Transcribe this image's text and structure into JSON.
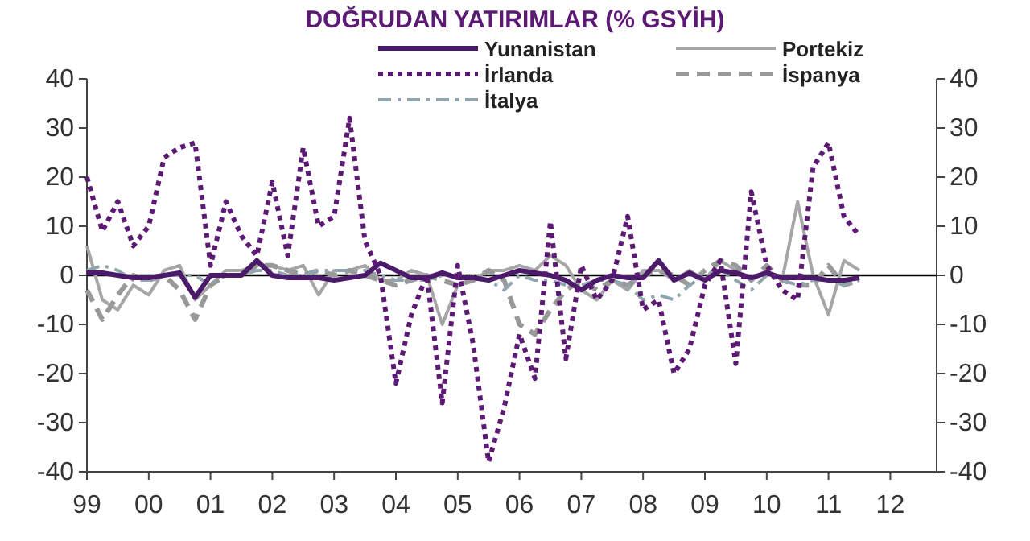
{
  "chart_data": {
    "type": "line",
    "title": "DOĞRUDAN YATIRIMLAR (% GSYİH)",
    "x": [
      1999,
      1999.25,
      1999.5,
      1999.75,
      2000,
      2000.25,
      2000.5,
      2000.75,
      2001,
      2001.25,
      2001.5,
      2001.75,
      2002,
      2002.25,
      2002.5,
      2002.75,
      2003,
      2003.25,
      2003.5,
      2003.75,
      2004,
      2004.25,
      2004.5,
      2004.75,
      2005,
      2005.25,
      2005.5,
      2005.75,
      2006,
      2006.25,
      2006.5,
      2006.75,
      2007,
      2007.25,
      2007.5,
      2007.75,
      2008,
      2008.25,
      2008.5,
      2008.75,
      2009,
      2009.25,
      2009.5,
      2009.75,
      2010,
      2010.25,
      2010.5,
      2010.75,
      2011,
      2011.25,
      2011.5
    ],
    "series": [
      {
        "name": "Yunanistan",
        "color": "#4b1a6b",
        "line_style": "solid",
        "values": [
          0.5,
          0.5,
          0,
          -0.5,
          -0.5,
          0,
          0.5,
          -4.5,
          0,
          0,
          0,
          3,
          0,
          -0.5,
          -0.5,
          -0.5,
          -1,
          -0.5,
          0,
          2.5,
          1,
          -0.5,
          -0.5,
          0.5,
          -0.5,
          -0.5,
          -1,
          0,
          1,
          0.5,
          0,
          -1,
          -3,
          -1,
          0,
          -0.5,
          -0.5,
          3,
          -1,
          0.5,
          -1,
          1,
          0.5,
          -0.5,
          0.5,
          -0.5,
          -0.5,
          -0.5,
          -1,
          -1,
          -0.5
        ]
      },
      {
        "name": "İrlanda",
        "color": "#5c1a75",
        "line_style": "dotted",
        "values": [
          20,
          9,
          15,
          6,
          10,
          24,
          26,
          27,
          2,
          15,
          8,
          4,
          19,
          4,
          26,
          10,
          12,
          32,
          7,
          0,
          -22,
          -8,
          0,
          -26,
          2,
          -14,
          -38,
          -27,
          -12,
          -21,
          11,
          -17,
          2,
          -5,
          -1,
          12,
          -7,
          -5,
          -20,
          -15,
          -2,
          3,
          -18,
          17,
          2,
          -3,
          -5,
          22,
          27,
          12,
          8
        ]
      },
      {
        "name": "İtalya",
        "color": "#8fa5b0",
        "line_style": "dashdot",
        "values": [
          1,
          2,
          1,
          -1,
          -1,
          0,
          0,
          0,
          -2,
          0,
          0,
          1,
          1,
          0,
          0,
          1,
          1,
          1,
          1,
          0,
          -1,
          -1,
          -1,
          0,
          0,
          0,
          -1,
          -3,
          0,
          -1,
          -1,
          -2,
          -2,
          -1,
          -1,
          -2,
          -5,
          -4,
          -5,
          -2,
          0,
          1,
          -1,
          -3,
          0,
          -1,
          -2,
          -1,
          -1,
          -2,
          -1
        ]
      },
      {
        "name": "Portekiz",
        "color": "#a6a6a6",
        "line_style": "solid",
        "values": [
          6,
          -5,
          -7,
          -2,
          -4,
          1,
          2,
          -5,
          -2,
          1,
          1,
          2,
          2,
          1,
          2,
          -4,
          1,
          1,
          2,
          -1,
          -1,
          1,
          0,
          -10,
          -2,
          -1,
          1,
          1,
          2,
          1,
          4,
          2,
          -3,
          -5,
          -1,
          -3,
          1,
          1,
          -1,
          1,
          -1,
          3,
          1,
          -1,
          1,
          -1,
          15,
          0,
          -8,
          3,
          1
        ]
      },
      {
        "name": "İspanya",
        "color": "#999999",
        "line_style": "dashed",
        "values": [
          -3,
          -9,
          -4,
          0,
          -1,
          0,
          -3,
          -9,
          -2,
          0,
          0,
          2,
          2,
          1,
          0,
          1,
          0,
          1,
          0,
          -1,
          -2,
          -1,
          0,
          -1,
          -2,
          -1,
          1,
          -1,
          -10,
          -12,
          -7,
          -3,
          -1,
          -3,
          -1,
          -2,
          0,
          1,
          0,
          -2,
          1,
          3,
          2,
          -1,
          2,
          -1,
          -2,
          -2,
          2,
          -2,
          -1
        ]
      }
    ],
    "xlim": [
      1999,
      2012.75
    ],
    "xticks": [
      {
        "value": 1999,
        "label": "99"
      },
      {
        "value": 2000,
        "label": "00"
      },
      {
        "value": 2001,
        "label": "01"
      },
      {
        "value": 2002,
        "label": "02"
      },
      {
        "value": 2003,
        "label": "03"
      },
      {
        "value": 2004,
        "label": "04"
      },
      {
        "value": 2005,
        "label": "05"
      },
      {
        "value": 2006,
        "label": "06"
      },
      {
        "value": 2007,
        "label": "07"
      },
      {
        "value": 2008,
        "label": "08"
      },
      {
        "value": 2009,
        "label": "09"
      },
      {
        "value": 2010,
        "label": "10"
      },
      {
        "value": 2011,
        "label": "11"
      },
      {
        "value": 2012,
        "label": "12"
      }
    ],
    "ylim": [
      -40,
      40
    ],
    "yticks": [
      -40,
      -30,
      -20,
      -10,
      0,
      10,
      20,
      30,
      40
    ],
    "y2lim": [
      -40,
      40
    ],
    "y2ticks": [
      -40,
      -30,
      -20,
      -10,
      0,
      10,
      20,
      30,
      40
    ],
    "ref_lines": [
      {
        "axis": "y",
        "value": 0,
        "color": "#000000"
      }
    ],
    "legend": "top right",
    "grid": false
  }
}
